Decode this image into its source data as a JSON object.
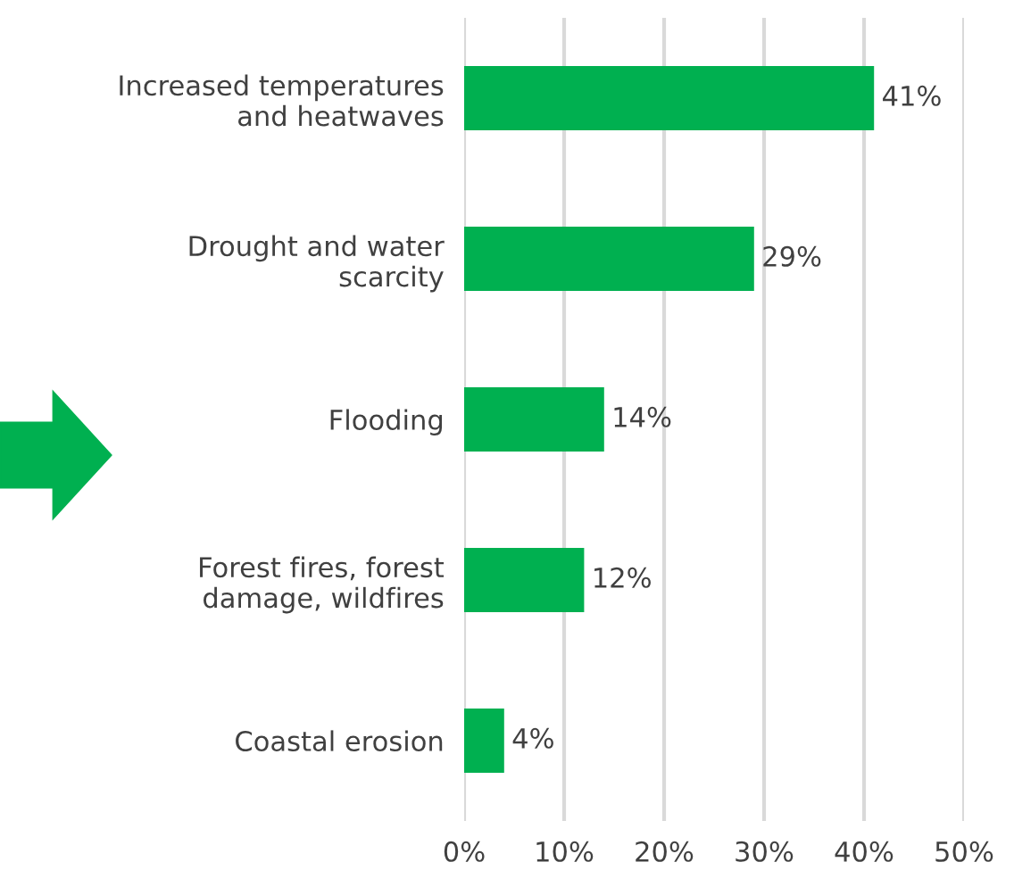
{
  "chart_data": {
    "type": "bar",
    "orientation": "horizontal",
    "categories": [
      "Increased temperatures\nand heatwaves",
      "Drought and water\nscarcity",
      "Flooding",
      "Forest fires, forest\ndamage, wildfires",
      "Coastal erosion"
    ],
    "values": [
      41,
      29,
      14,
      12,
      4
    ],
    "value_labels": [
      "41%",
      "29%",
      "14%",
      "12%",
      "4%"
    ],
    "color": "#00b050",
    "xlim": [
      0,
      50
    ],
    "xticks": [
      {
        "value": 0,
        "label": "0%"
      },
      {
        "value": 10,
        "label": "10%"
      },
      {
        "value": 20,
        "label": "20%"
      },
      {
        "value": 30,
        "label": "30%"
      },
      {
        "value": 40,
        "label": "40%"
      },
      {
        "value": 50,
        "label": "50%"
      }
    ],
    "grid": "x",
    "legend": false
  }
}
